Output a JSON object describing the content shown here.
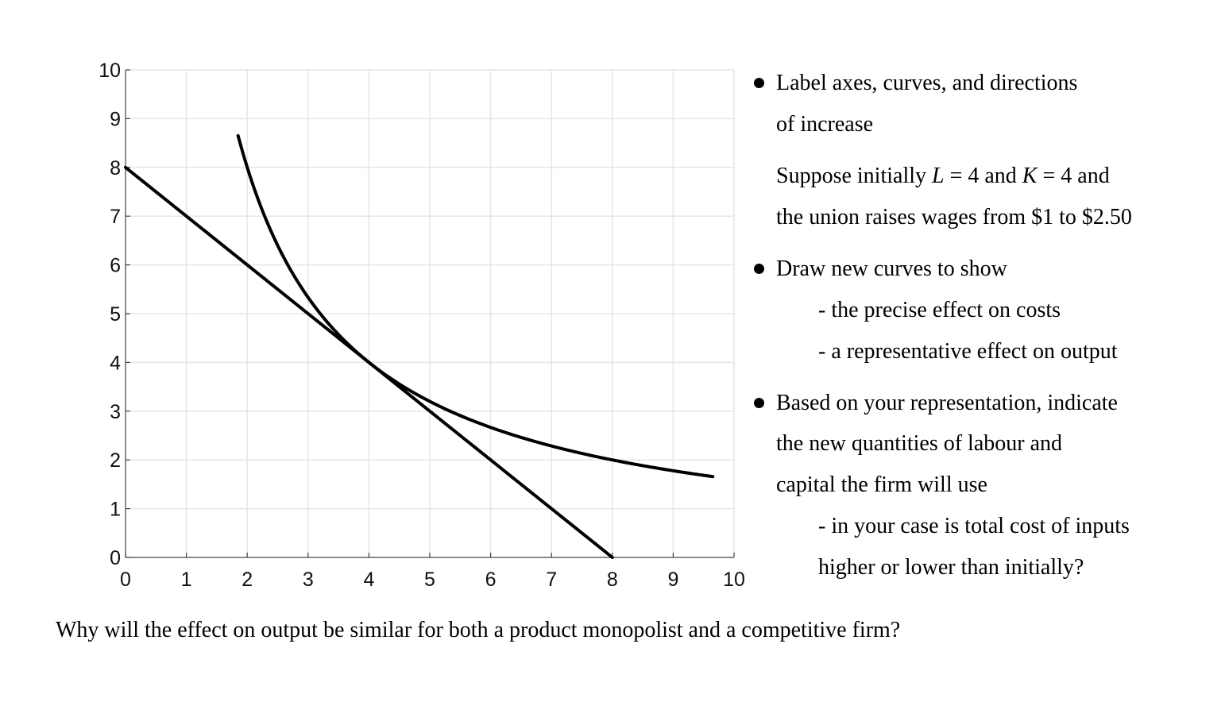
{
  "chart_data": {
    "type": "line",
    "title": "",
    "xlabel": "",
    "ylabel": "",
    "xlim": [
      0,
      10
    ],
    "ylim": [
      0,
      10
    ],
    "xticks": [
      "0",
      "1",
      "2",
      "3",
      "4",
      "5",
      "6",
      "7",
      "8",
      "9",
      "10"
    ],
    "yticks": [
      "0",
      "1",
      "2",
      "3",
      "4",
      "5",
      "6",
      "7",
      "8",
      "9",
      "10"
    ],
    "grid": true,
    "series": [
      {
        "kind": "isocost_line",
        "x": [
          0,
          8
        ],
        "y": [
          8,
          0
        ]
      },
      {
        "kind": "isoquant_curve",
        "equation": "y = 16 / x",
        "x_range": [
          1.85,
          9.65
        ]
      }
    ]
  },
  "side_text": {
    "bullet1_line1": "Label axes, curves, and directions",
    "bullet1_line2": "of increase",
    "suppose_a": "Suppose initially ",
    "var_L": "L",
    "eq_L": " = 4 and ",
    "var_K": "K",
    "eq_K": " = 4 and",
    "suppose_line2": "the union raises wages from $1 to $2.50",
    "bullet2_line1": "Draw new curves to show",
    "bullet2_sub1": "- the precise effect on costs",
    "bullet2_sub2": "- a representative effect on output",
    "bullet3_line1": "Based on your representation, indicate",
    "bullet3_line2": "the new quantities of labour and",
    "bullet3_line3": "capital the firm will use",
    "bullet3_sub1": "- in your case is total cost of inputs",
    "bullet3_sub2": "higher or lower than initially?"
  },
  "question": "Why will the effect on output be similar for both a product monopolist and a competitive firm?"
}
